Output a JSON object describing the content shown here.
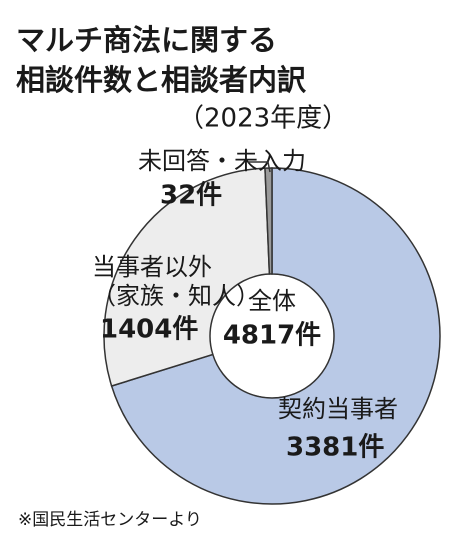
{
  "chart_data": {
    "type": "donut",
    "title": [
      "マルチ商法に関する",
      "相談件数と相談者内訳"
    ],
    "subtitle": "（2023年度）",
    "categories": [
      [
        "契約当事者"
      ],
      [
        "当事者以外",
        "（家族・知人）"
      ],
      [
        "未回答・未入力"
      ]
    ],
    "values": [
      3381,
      1404,
      32
    ],
    "value_labels": [
      "3381件",
      "1404件",
      "32件"
    ],
    "colors": [
      "#b9c9e6",
      "#ededed",
      "#9a9a9a"
    ],
    "total_name": "全体",
    "total": 4817,
    "total_label": "4817件",
    "source": "※国民生活センターより"
  }
}
